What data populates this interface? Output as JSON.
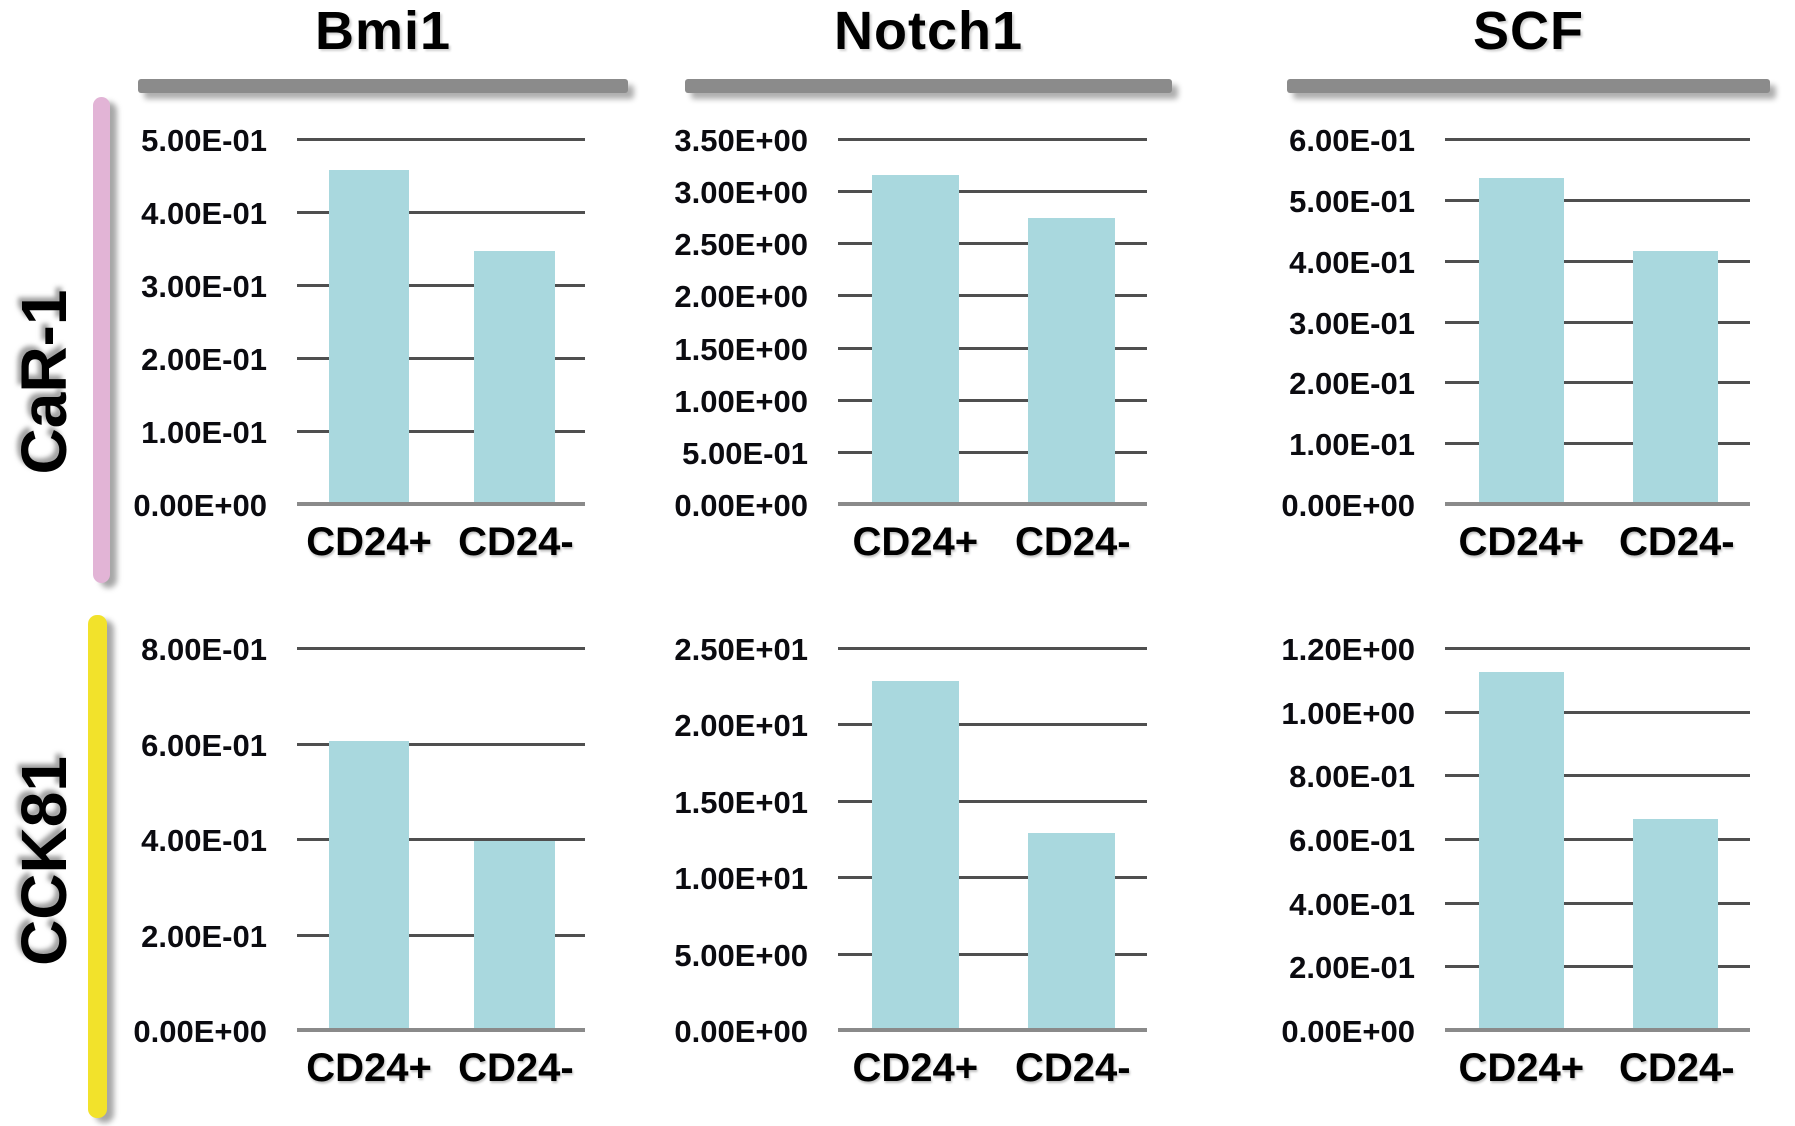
{
  "figure": {
    "background": "#ffffff"
  },
  "style": {
    "bar_color": "#a9d8de",
    "gridline_color": "#4f4f4f",
    "baseline_color": "#8a8a8a",
    "header_bar_color": "#8b8b8b",
    "text_color": "#000000"
  },
  "columns": [
    {
      "label": "Bmi1"
    },
    {
      "label": "Notch1"
    },
    {
      "label": "SCF"
    }
  ],
  "rows": [
    {
      "label": "CaR-1",
      "accent_color": "#e2b4d6"
    },
    {
      "label": "CCK81",
      "accent_color": "#f2e22b"
    }
  ],
  "chart_data": [
    {
      "type": "bar",
      "row": "CaR-1",
      "column": "Bmi1",
      "categories": [
        "CD24+",
        "CD24-"
      ],
      "values": [
        0.46,
        0.35
      ],
      "ylim": [
        0,
        0.5
      ],
      "grid": "horizontal",
      "legend": "none",
      "y_ticks": [
        {
          "label": "5.00E-01",
          "value": 0.5
        },
        {
          "label": "4.00E-01",
          "value": 0.4
        },
        {
          "label": "3.00E-01",
          "value": 0.3
        },
        {
          "label": "2.00E-01",
          "value": 0.2
        },
        {
          "label": "1.00E-01",
          "value": 0.1
        },
        {
          "label": "0.00E+00",
          "value": 0
        }
      ]
    },
    {
      "type": "bar",
      "row": "CaR-1",
      "column": "Notch1",
      "categories": [
        "CD24+",
        "CD24-"
      ],
      "values": [
        3.17,
        2.76
      ],
      "ylim": [
        0,
        3.5
      ],
      "grid": "horizontal",
      "legend": "none",
      "y_ticks": [
        {
          "label": "3.50E+00",
          "value": 3.5
        },
        {
          "label": "3.00E+00",
          "value": 3.0
        },
        {
          "label": "2.50E+00",
          "value": 2.5
        },
        {
          "label": "2.00E+00",
          "value": 2.0
        },
        {
          "label": "1.50E+00",
          "value": 1.5
        },
        {
          "label": "1.00E+00",
          "value": 1.0
        },
        {
          "label": "5.00E-01",
          "value": 0.5
        },
        {
          "label": "0.00E+00",
          "value": 0
        }
      ]
    },
    {
      "type": "bar",
      "row": "CaR-1",
      "column": "SCF",
      "categories": [
        "CD24+",
        "CD24-"
      ],
      "values": [
        0.54,
        0.42
      ],
      "ylim": [
        0,
        0.6
      ],
      "grid": "horizontal",
      "legend": "none",
      "y_ticks": [
        {
          "label": "6.00E-01",
          "value": 0.6
        },
        {
          "label": "5.00E-01",
          "value": 0.5
        },
        {
          "label": "4.00E-01",
          "value": 0.4
        },
        {
          "label": "3.00E-01",
          "value": 0.3
        },
        {
          "label": "2.00E-01",
          "value": 0.2
        },
        {
          "label": "1.00E-01",
          "value": 0.1
        },
        {
          "label": "0.00E+00",
          "value": 0
        }
      ]
    },
    {
      "type": "bar",
      "row": "CCK81",
      "column": "Bmi1",
      "categories": [
        "CD24+",
        "CD24-"
      ],
      "values": [
        0.61,
        0.4
      ],
      "ylim": [
        0,
        0.8
      ],
      "grid": "horizontal",
      "legend": "none",
      "y_ticks": [
        {
          "label": "8.00E-01",
          "value": 0.8
        },
        {
          "label": "6.00E-01",
          "value": 0.6
        },
        {
          "label": "4.00E-01",
          "value": 0.4
        },
        {
          "label": "2.00E-01",
          "value": 0.2
        },
        {
          "label": "0.00E+00",
          "value": 0
        }
      ]
    },
    {
      "type": "bar",
      "row": "CCK81",
      "column": "Notch1",
      "categories": [
        "CD24+",
        "CD24-"
      ],
      "values": [
        23.0,
        13.0
      ],
      "ylim": [
        0,
        25
      ],
      "grid": "horizontal",
      "legend": "none",
      "y_ticks": [
        {
          "label": "2.50E+01",
          "value": 25
        },
        {
          "label": "2.00E+01",
          "value": 20
        },
        {
          "label": "1.50E+01",
          "value": 15
        },
        {
          "label": "1.00E+01",
          "value": 10
        },
        {
          "label": "5.00E+00",
          "value": 5
        },
        {
          "label": "0.00E+00",
          "value": 0
        }
      ]
    },
    {
      "type": "bar",
      "row": "CCK81",
      "column": "SCF",
      "categories": [
        "CD24+",
        "CD24-"
      ],
      "values": [
        1.13,
        0.67
      ],
      "ylim": [
        0,
        1.2
      ],
      "grid": "horizontal",
      "legend": "none",
      "y_ticks": [
        {
          "label": "1.20E+00",
          "value": 1.2
        },
        {
          "label": "1.00E+00",
          "value": 1.0
        },
        {
          "label": "8.00E-01",
          "value": 0.8
        },
        {
          "label": "6.00E-01",
          "value": 0.6
        },
        {
          "label": "4.00E-01",
          "value": 0.4
        },
        {
          "label": "2.00E-01",
          "value": 0.2
        },
        {
          "label": "0.00E+00",
          "value": 0
        }
      ]
    }
  ]
}
